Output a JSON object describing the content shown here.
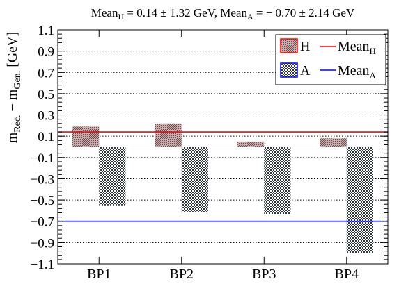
{
  "chart_data": {
    "type": "bar",
    "title": {
      "part1": "Mean",
      "part1_sub": "H",
      "part2": " = 0.14 ± 1.32 GeV,   Mean",
      "part2_sub": "A",
      "part3": " = − 0.70 ± 2.14 GeV"
    },
    "ylabel": {
      "m1": "m",
      "s1": "Rec.",
      "m2": " − m",
      "s2": "Gen.",
      "m3": " [GeV]"
    },
    "categories": [
      "BP1",
      "BP2",
      "BP3",
      "BP4"
    ],
    "series": [
      {
        "name": "H",
        "values": [
          0.19,
          0.22,
          0.05,
          0.08
        ],
        "color": "#a07878",
        "outline": "#ff0000"
      },
      {
        "name": "A",
        "values": [
          -0.55,
          -0.61,
          -0.63,
          -1.0
        ],
        "color": "#505a5a",
        "outline": "#0000ff"
      }
    ],
    "mean_lines": [
      {
        "name": "Mean",
        "sub": "H",
        "value": 0.14,
        "color": "#ff0000"
      },
      {
        "name": "Mean",
        "sub": "A",
        "value": -0.7,
        "color": "#0000ff"
      }
    ],
    "ylim": [
      -1.1,
      1.1
    ],
    "yticks": [
      "1.1",
      "0.9",
      "0.7",
      "0.5",
      "0.3",
      "0.1",
      "−0.1",
      "−0.3",
      "−0.5",
      "−0.7",
      "−0.9",
      "−1.1"
    ],
    "ytick_values": [
      1.1,
      0.9,
      0.7,
      0.5,
      0.3,
      0.1,
      -0.1,
      -0.3,
      -0.5,
      -0.7,
      -0.9,
      -1.1
    ],
    "grid": "horizontal-dotted",
    "legend_position": "top-right"
  }
}
